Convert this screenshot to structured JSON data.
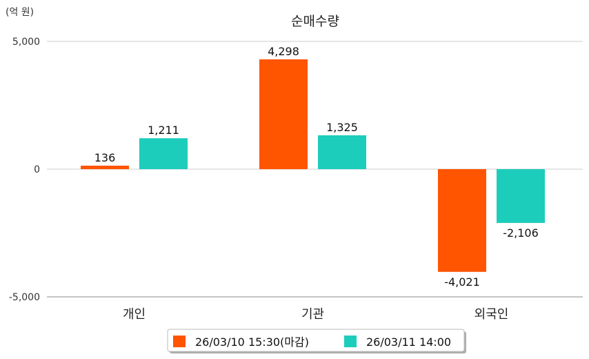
{
  "chart_data": {
    "type": "bar",
    "title": "순매수량",
    "unit_label": "(억 원)",
    "categories": [
      "개인",
      "기관",
      "외국인"
    ],
    "series": [
      {
        "name": "26/03/10 15:30(마감)",
        "color": "#ff5400",
        "values": [
          136,
          4298,
          -4021
        ],
        "labels": [
          "136",
          "4,298",
          "-4,021"
        ]
      },
      {
        "name": "26/03/11 14:00",
        "color": "#1dcdbc",
        "values": [
          1211,
          1325,
          -2106
        ],
        "labels": [
          "1,211",
          "1,325",
          "-2,106"
        ]
      }
    ],
    "ylim": [
      -5000,
      5000
    ],
    "yticks": [
      5000,
      0,
      -5000
    ],
    "ytick_labels": [
      "5,000",
      "0",
      "-5,000"
    ],
    "grid": true,
    "legend_position": "bottom-center"
  }
}
